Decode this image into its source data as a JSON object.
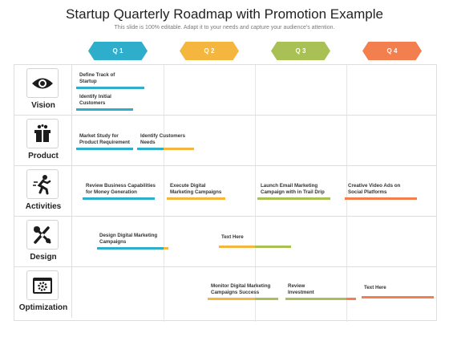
{
  "title": "Startup Quarterly Roadmap with Promotion Example",
  "subtitle": "This slide is 100% editable. Adapt it to your needs and capture your audience's attention.",
  "quarters": [
    {
      "label": "Q 1",
      "color": "#2eaecb"
    },
    {
      "label": "Q 2",
      "color": "#f4b63f"
    },
    {
      "label": "Q 3",
      "color": "#a9c154"
    },
    {
      "label": "Q 4",
      "color": "#f37f4e"
    }
  ],
  "rows": [
    {
      "label": "Vision",
      "icon": "eye-icon",
      "tasks": [
        {
          "text": "Define Track of\nStartup"
        },
        {
          "text": "Identify Initial\nCustomers"
        }
      ]
    },
    {
      "label": "Product",
      "icon": "gift-box-icon",
      "tasks": [
        {
          "text": "Market Study for\nProduct Requirement"
        },
        {
          "text": "Identify Customers\nNeeds"
        }
      ]
    },
    {
      "label": "Activities",
      "icon": "running-person-icon",
      "tasks": [
        {
          "text": "Review Business Capabilities\nfor Money Generation"
        },
        {
          "text": "Execute Digital\nMarketing Campaigns"
        },
        {
          "text": "Launch Email Marketing\nCampaign with in Trail Drip"
        },
        {
          "text": "Creative Video Ads on\nSocial Platforms"
        }
      ]
    },
    {
      "label": "Design",
      "icon": "design-tools-icon",
      "tasks": [
        {
          "text": "Design Digital Marketing\nCampaigns"
        },
        {
          "text": "Text Here"
        }
      ]
    },
    {
      "label": "Optimization",
      "icon": "browser-gear-icon",
      "tasks": [
        {
          "text": "Monitor Digital Marketing\nCampaigns Success"
        },
        {
          "text": "Review\nInvestment"
        },
        {
          "text": "Text Here"
        }
      ]
    }
  ]
}
